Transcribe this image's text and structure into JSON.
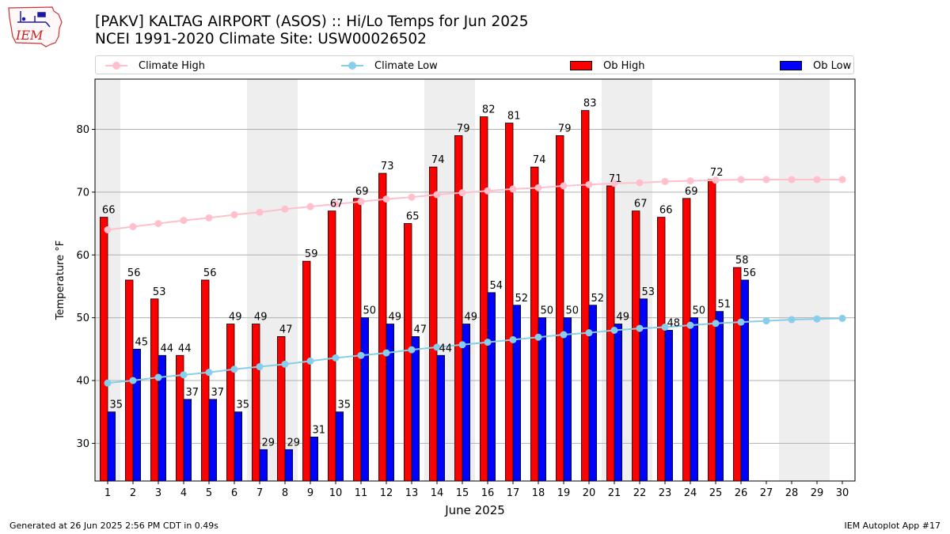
{
  "header": {
    "title_line1": "[PAKV] KALTAG AIRPORT (ASOS) :: Hi/Lo Temps for Jun 2025",
    "title_line2": "NCEI 1991-2020 Climate Site: USW00026502",
    "logo_text": "IEM"
  },
  "legend": [
    {
      "label": "Climate High",
      "color": "#ffc0cb",
      "kind": "line"
    },
    {
      "label": "Climate Low",
      "color": "#87ceeb",
      "kind": "line"
    },
    {
      "label": "Ob High",
      "color": "#ff0000",
      "kind": "bar"
    },
    {
      "label": "Ob Low",
      "color": "#0000ff",
      "kind": "bar"
    }
  ],
  "footer": {
    "left": "Generated at 26 Jun 2025 2:56 PM CDT in 0.49s",
    "right": "IEM Autoplot App #17"
  },
  "chart_data": {
    "type": "bar",
    "xlabel": "June 2025",
    "ylabel": "Temperature °F",
    "ylim": [
      24,
      88
    ],
    "yticks": [
      30,
      40,
      50,
      60,
      70,
      80
    ],
    "grid": true,
    "legend_position": "top",
    "weekend_shading_days": [
      1,
      7,
      8,
      14,
      15,
      21,
      22,
      28,
      29
    ],
    "days": [
      1,
      2,
      3,
      4,
      5,
      6,
      7,
      8,
      9,
      10,
      11,
      12,
      13,
      14,
      15,
      16,
      17,
      18,
      19,
      20,
      21,
      22,
      23,
      24,
      25,
      26,
      27,
      28,
      29,
      30
    ],
    "ob_high": [
      66,
      56,
      53,
      44,
      56,
      49,
      49,
      47,
      59,
      67,
      69,
      73,
      65,
      74,
      79,
      82,
      81,
      74,
      79,
      83,
      71,
      67,
      66,
      69,
      72,
      58
    ],
    "ob_low": [
      35,
      45,
      44,
      37,
      37,
      35,
      29,
      29,
      31,
      35,
      50,
      49,
      47,
      44,
      49,
      54,
      52,
      50,
      50,
      52,
      49,
      53,
      48,
      50,
      51,
      56
    ],
    "climate_high": [
      64.0,
      64.5,
      65.0,
      65.5,
      65.9,
      66.4,
      66.8,
      67.3,
      67.7,
      68.1,
      68.5,
      68.9,
      69.2,
      69.6,
      69.9,
      70.2,
      70.5,
      70.7,
      71.0,
      71.2,
      71.4,
      71.5,
      71.7,
      71.8,
      71.9,
      72.0,
      72.0,
      72.0,
      72.0,
      72.0
    ],
    "climate_low": [
      39.6,
      40.0,
      40.5,
      40.9,
      41.3,
      41.8,
      42.2,
      42.6,
      43.1,
      43.6,
      44.0,
      44.4,
      44.9,
      45.3,
      45.7,
      46.1,
      46.5,
      46.9,
      47.3,
      47.6,
      48.0,
      48.3,
      48.5,
      48.8,
      49.1,
      49.3,
      49.5,
      49.7,
      49.8,
      49.9
    ],
    "colors": {
      "ob_high": "#ff0000",
      "ob_low": "#0000ff",
      "climate_high": "#ffc0cb",
      "climate_low": "#87ceeb",
      "weekend": "#eeeeee",
      "grid": "#b0b0b0"
    }
  }
}
